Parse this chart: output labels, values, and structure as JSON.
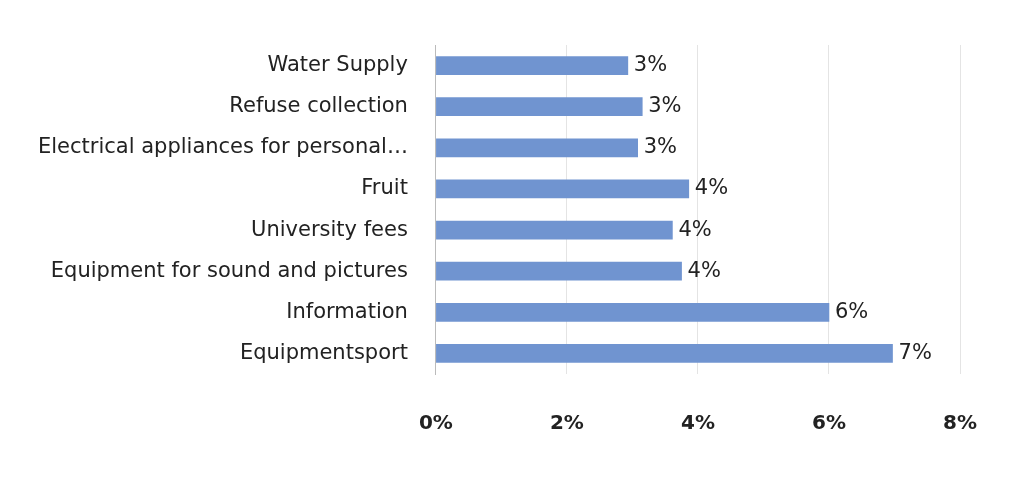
{
  "chart_data": {
    "type": "bar",
    "orientation": "horizontal",
    "categories": [
      "Water Supply",
      "Refuse collection",
      "Electrical appliances for personal…",
      "Fruit",
      "University fees",
      "Equipment for sound and pictures",
      "Information",
      "Equipmentsport"
    ],
    "values": [
      2.93,
      3.15,
      3.08,
      3.86,
      3.61,
      3.75,
      6.0,
      6.97
    ],
    "value_labels": [
      "3%",
      "3%",
      "3%",
      "4%",
      "4%",
      "4%",
      "6%",
      "7%"
    ],
    "color": "#7094d0",
    "xlim": [
      0,
      8
    ],
    "xticks": [
      {
        "value": 0,
        "label": "0%"
      },
      {
        "value": 2,
        "label": "2%"
      },
      {
        "value": 4,
        "label": "4%"
      },
      {
        "value": 6,
        "label": "6%"
      },
      {
        "value": 8,
        "label": "8%"
      }
    ],
    "grid": "x",
    "legend": false
  }
}
